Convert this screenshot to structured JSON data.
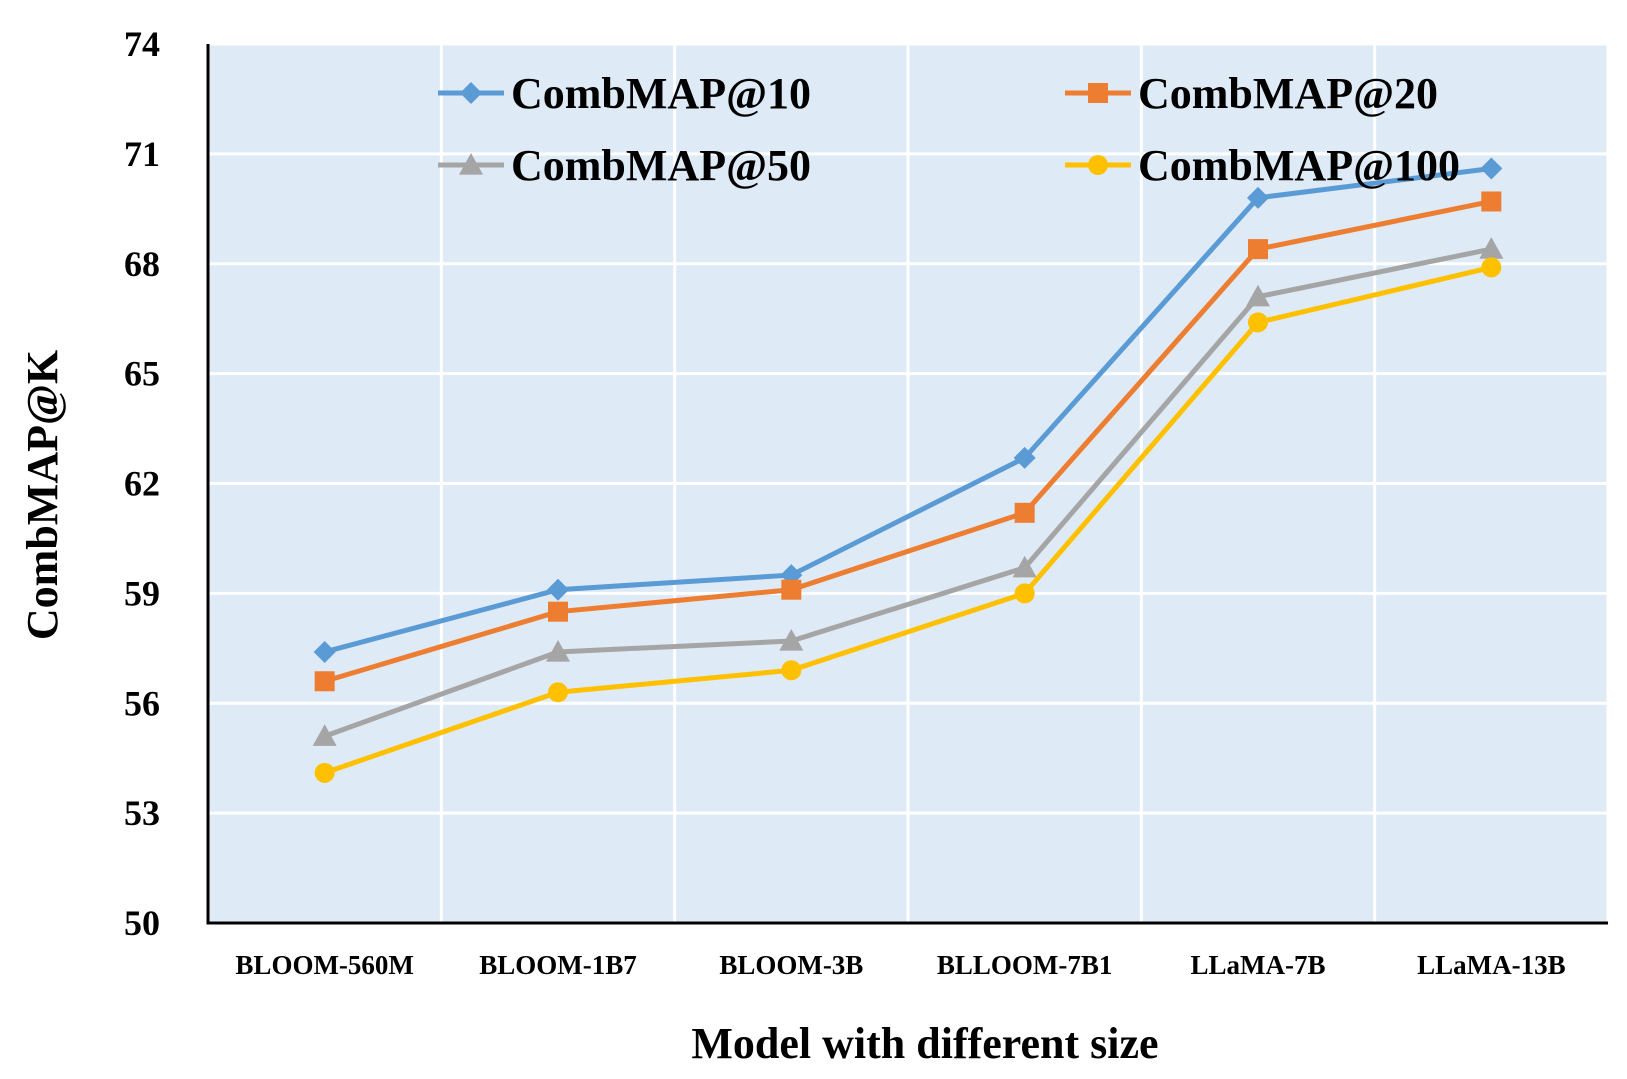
{
  "chart_data": {
    "type": "line",
    "title": "",
    "xlabel": "Model with different size",
    "ylabel": "CombMAP@K",
    "categories": [
      "BLOOM-560M",
      "BLOOM-1B7",
      "BLOOM-3B",
      "BLLOOM-7B1",
      "LLaMA-7B",
      "LLaMA-13B"
    ],
    "ylim": [
      50,
      74
    ],
    "yticks": [
      50,
      53,
      56,
      59,
      62,
      65,
      68,
      71,
      74
    ],
    "grid": true,
    "legend_position": "top",
    "series": [
      {
        "name": "CombMAP@10",
        "color": "#5B9BD5",
        "marker": "diamond",
        "values": [
          57.4,
          59.1,
          59.5,
          62.7,
          69.8,
          70.6
        ]
      },
      {
        "name": "CombMAP@20",
        "color": "#ED7D31",
        "marker": "square",
        "values": [
          56.6,
          58.5,
          59.1,
          61.2,
          68.4,
          69.7
        ]
      },
      {
        "name": "CombMAP@50",
        "color": "#A5A5A5",
        "marker": "triangle",
        "values": [
          55.1,
          57.4,
          57.7,
          59.7,
          67.1,
          68.4
        ]
      },
      {
        "name": "CombMAP@100",
        "color": "#FFC000",
        "marker": "circle",
        "values": [
          54.1,
          56.3,
          56.9,
          59.0,
          66.4,
          67.9
        ]
      }
    ],
    "plot_background": "#DEEAF6",
    "gridline_color": "#FFFFFF"
  }
}
